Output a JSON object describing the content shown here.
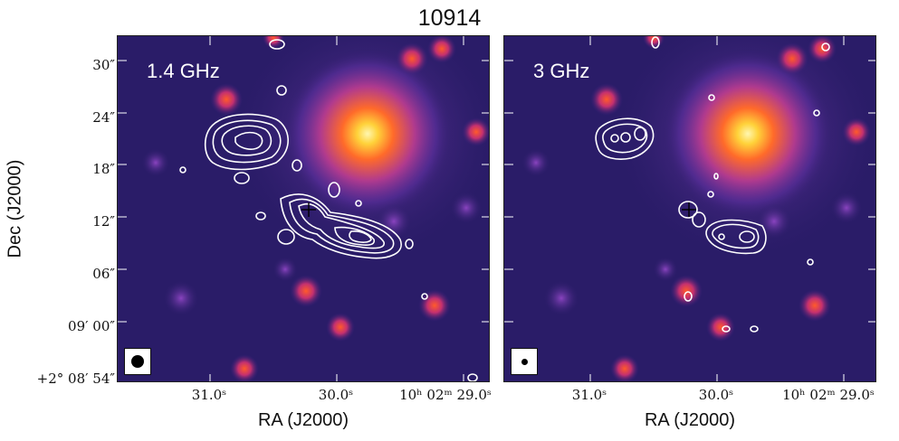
{
  "figure": {
    "title": "10914",
    "y_axis_label": "Dec (J2000)",
    "x_axis_label": "RA (J2000)",
    "y_ticks": [
      "30″",
      "24″",
      "18″",
      "12″",
      "06″",
      "09′ 00″",
      "+2° 08′ 54″"
    ],
    "x_ticks": [
      "31.0ˢ",
      "30.0ˢ",
      "10ʰ 02ᵐ 29.0ˢ"
    ],
    "colors": {
      "background_sky": "#2a1c68",
      "contour": "#ffffff",
      "source_core": "#ffe98a"
    }
  },
  "panels": [
    {
      "label": "1.4 GHz",
      "beam": "large"
    },
    {
      "label": "3 GHz",
      "beam": "small"
    }
  ],
  "icons": {
    "marker": "plus-marker-icon",
    "beam": "beam-ellipse-icon"
  }
}
